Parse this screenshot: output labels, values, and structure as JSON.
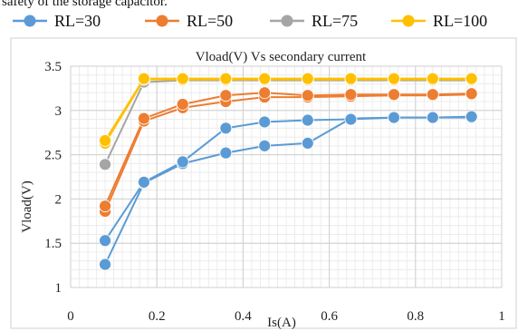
{
  "top_text": "safety of the storage capacitor.",
  "chart_data": {
    "type": "line",
    "title": "Vload(V) Vs secondary current",
    "xlabel": "Is(A)",
    "ylabel": "Vload(V)",
    "xlim": [
      0,
      1
    ],
    "ylim": [
      1,
      3.5
    ],
    "x_ticks": [
      "0",
      "0.2",
      "0.4",
      "0.6",
      "0.8",
      "1"
    ],
    "y_ticks": [
      "1",
      "1.5",
      "2",
      "2.5",
      "3",
      "3.5"
    ],
    "x_tick_values": [
      0,
      0.2,
      0.4,
      0.6,
      0.8,
      1
    ],
    "y_tick_values": [
      1,
      1.5,
      2,
      2.5,
      3,
      3.5
    ],
    "minor_x_step": 0.02,
    "minor_y_step": 0.1,
    "grid": true,
    "legend_position": "top",
    "series": [
      {
        "name": "RL=30",
        "color": "#5B9BD5",
        "curves": [
          [
            [
              0.08,
              1.26
            ],
            [
              0.17,
              2.18
            ],
            [
              0.26,
              2.4
            ],
            [
              0.36,
              2.52
            ],
            [
              0.45,
              2.6
            ],
            [
              0.55,
              2.63
            ],
            [
              0.65,
              2.91
            ],
            [
              0.75,
              2.92
            ],
            [
              0.84,
              2.92
            ],
            [
              0.93,
              2.92
            ]
          ],
          [
            [
              0.08,
              1.53
            ],
            [
              0.17,
              2.19
            ],
            [
              0.26,
              2.42
            ],
            [
              0.36,
              2.8
            ],
            [
              0.45,
              2.87
            ],
            [
              0.55,
              2.89
            ],
            [
              0.65,
              2.9
            ],
            [
              0.75,
              2.92
            ],
            [
              0.84,
              2.92
            ],
            [
              0.93,
              2.93
            ]
          ]
        ]
      },
      {
        "name": "RL=50",
        "color": "#ED7D31",
        "curves": [
          [
            [
              0.08,
              1.86
            ],
            [
              0.17,
              2.88
            ],
            [
              0.26,
              3.03
            ],
            [
              0.36,
              3.1
            ],
            [
              0.45,
              3.15
            ],
            [
              0.55,
              3.15
            ],
            [
              0.65,
              3.16
            ],
            [
              0.75,
              3.17
            ],
            [
              0.84,
              3.17
            ],
            [
              0.93,
              3.18
            ]
          ],
          [
            [
              0.08,
              1.92
            ],
            [
              0.17,
              2.91
            ],
            [
              0.26,
              3.07
            ],
            [
              0.36,
              3.17
            ],
            [
              0.45,
              3.2
            ],
            [
              0.55,
              3.17
            ],
            [
              0.65,
              3.18
            ],
            [
              0.75,
              3.18
            ],
            [
              0.84,
              3.18
            ],
            [
              0.93,
              3.19
            ]
          ]
        ]
      },
      {
        "name": "RL=75",
        "color": "#A5A5A5",
        "curves": [
          [
            [
              0.08,
              2.39
            ],
            [
              0.17,
              3.32
            ],
            [
              0.26,
              3.34
            ],
            [
              0.36,
              3.34
            ],
            [
              0.45,
              3.34
            ],
            [
              0.55,
              3.34
            ],
            [
              0.65,
              3.34
            ],
            [
              0.75,
              3.34
            ],
            [
              0.84,
              3.34
            ],
            [
              0.93,
              3.34
            ]
          ]
        ]
      },
      {
        "name": "RL=100",
        "color": "#FFC000",
        "curves": [
          [
            [
              0.08,
              2.63
            ],
            [
              0.17,
              3.35
            ],
            [
              0.26,
              3.35
            ],
            [
              0.36,
              3.35
            ],
            [
              0.45,
              3.35
            ],
            [
              0.55,
              3.35
            ],
            [
              0.65,
              3.35
            ],
            [
              0.75,
              3.35
            ],
            [
              0.84,
              3.35
            ],
            [
              0.93,
              3.35
            ]
          ],
          [
            [
              0.08,
              2.66
            ],
            [
              0.17,
              3.36
            ],
            [
              0.26,
              3.36
            ],
            [
              0.36,
              3.36
            ],
            [
              0.45,
              3.36
            ],
            [
              0.55,
              3.36
            ],
            [
              0.65,
              3.36
            ],
            [
              0.75,
              3.36
            ],
            [
              0.84,
              3.36
            ],
            [
              0.93,
              3.36
            ]
          ]
        ]
      }
    ]
  }
}
